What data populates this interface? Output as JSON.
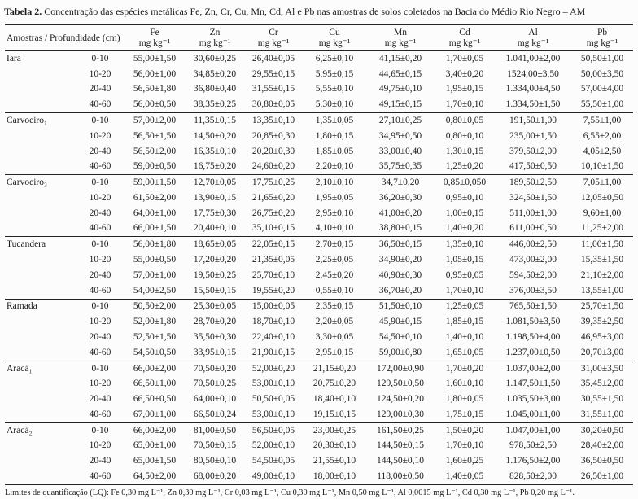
{
  "table": {
    "caption": {
      "label": "Tabela 2.",
      "text": "Concentração das espécies metálicas Fe, Zn, Cr, Cu, Mn, Cd, Al e Pb  nas amostras de solos coletados na Bacia do Médio Rio Negro – AM"
    },
    "header": {
      "row_header": "Amostras / Profundidade (cm)",
      "columns": [
        "Fe",
        "Zn",
        "Cr",
        "Cu",
        "Mn",
        "Cd",
        "Al",
        "Pb"
      ],
      "unit": "mg kg⁻¹"
    },
    "groups": [
      {
        "name": "Iara",
        "rows": [
          {
            "depth": "0-10",
            "values": [
              "55,00±1,50",
              "30,60±0,25",
              "26,40±0,05",
              "6,25±0,10",
              "41,15±0,20",
              "1,70±0,05",
              "1.041,00±2,00",
              "50,50±1,00"
            ]
          },
          {
            "depth": "10-20",
            "values": [
              "56,00±1,00",
              "34,85±0,20",
              "29,55±0,15",
              "5,95±0,15",
              "44,65±0,15",
              "3,40±0,20",
              "1524,00±3,50",
              "50,00±3,50"
            ]
          },
          {
            "depth": "20-40",
            "values": [
              "56,50±1,80",
              "36,80±0,40",
              "31,55±0,15",
              "5,55±0,10",
              "49,75±0,10",
              "1,95±0,15",
              "1.334,00±4,50",
              "57,00±4,00"
            ]
          },
          {
            "depth": "40-60",
            "values": [
              "56,00±0,50",
              "38,35±0,25",
              "30,80±0,05",
              "5,30±0,10",
              "49,15±0,15",
              "1,70±0,10",
              "1.334,50±1,50",
              "55,50±1,00"
            ]
          }
        ]
      },
      {
        "name": "Carvoeiro₁",
        "rows": [
          {
            "depth": "0-10",
            "values": [
              "57,00±2,00",
              "11,35±0,15",
              "13,35±0,10",
              "1,35±0,05",
              "27,10±0,25",
              "0,80±0,05",
              "191,50±1,00",
              "7,55±1,00"
            ]
          },
          {
            "depth": "10-20",
            "values": [
              "56,50±1,50",
              "14,50±0,20",
              "20,85±0,30",
              "1,80±0,15",
              "34,95±0,50",
              "0,80±0,10",
              "235,00±1,50",
              "6,55±2,00"
            ]
          },
          {
            "depth": "20-40",
            "values": [
              "56,50±2,00",
              "16,35±0,10",
              "20,20±0,30",
              "1,85±0,05",
              "33,00±0,40",
              "1,30±0,15",
              "379,50±2,00",
              "4,05±2,50"
            ]
          },
          {
            "depth": "40-60",
            "values": [
              "59,00±0,50",
              "16,75±0,20",
              "24,60±0,20",
              "2,20±0,10",
              "35,75±0,35",
              "1,25±0,20",
              "417,50±0,50",
              "10,10±1,50"
            ]
          }
        ]
      },
      {
        "name": "Carvoeiro₃",
        "rows": [
          {
            "depth": "0-10",
            "values": [
              "59,00±1,50",
              "12,70±0,05",
              "17,75±0,25",
              "2,10±0,10",
              "34,7±0,20",
              "0,85±0,050",
              "189,50±2,50",
              "7,05±1,00"
            ]
          },
          {
            "depth": "10-20",
            "values": [
              "61,50±2,00",
              "13,90±0,15",
              "21,65±0,20",
              "1,95±0,05",
              "36,20±0,30",
              "0,95±0,10",
              "324,50±1,50",
              "12,05±0,50"
            ]
          },
          {
            "depth": "20-40",
            "values": [
              "64,00±1,00",
              "17,75±0,30",
              "26,75±0,20",
              "2,95±0,10",
              "41,00±0,20",
              "1,00±0,15",
              "511,00±1,00",
              "9,60±1,00"
            ]
          },
          {
            "depth": "40-60",
            "values": [
              "66,00±1,50",
              "20,40±0,10",
              "35,10±0,15",
              "4,10±0,10",
              "38,80±0,15",
              "1,40±0,20",
              "611,00±0,50",
              "11,25±2,00"
            ]
          }
        ]
      },
      {
        "name": "Tucandera",
        "rows": [
          {
            "depth": "0-10",
            "values": [
              "56,00±1,80",
              "18,65±0,05",
              "22,05±0,15",
              "2,70±0,15",
              "36,50±0,15",
              "1,35±0,10",
              "446,00±2,50",
              "11,00±1,50"
            ]
          },
          {
            "depth": "10-20",
            "values": [
              "55,00±0,50",
              "17,20±0,20",
              "21,35±0,05",
              "2,25±0,05",
              "34,90±0,20",
              "1,05±0,15",
              "473,00±2,00",
              "15,35±1,50"
            ]
          },
          {
            "depth": "20-40",
            "values": [
              "57,00±1,00",
              "19,50±0,25",
              "25,70±0,10",
              "2,45±0,20",
              "40,90±0,30",
              "0,95±0,05",
              "594,50±2,00",
              "21,10±2,00"
            ]
          },
          {
            "depth": "40-60",
            "values": [
              "54,00±2,50",
              "15,50±0,15",
              "19,55±0,20",
              "0,55±0,10",
              "36,70±0,20",
              "1,70±0,10",
              "376,00±3,50",
              "13,55±1,00"
            ]
          }
        ]
      },
      {
        "name": "Ramada",
        "rows": [
          {
            "depth": "0-10",
            "values": [
              "50,50±2,00",
              "25,30±0,05",
              "15,00±0,05",
              "2,35±0,15",
              "51,50±0,10",
              "1,25±0,05",
              "765,50±1,50",
              "25,70±1,50"
            ]
          },
          {
            "depth": "10-20",
            "values": [
              "52,00±1,80",
              "28,70±0,20",
              "18,70±0,10",
              "2,20±0,05",
              "45,90±0,15",
              "1,85±0,15",
              "1.081,50±3,50",
              "39,35±2,50"
            ]
          },
          {
            "depth": "20-40",
            "values": [
              "52,50±1,50",
              "35,50±0,30",
              "22,40±0,10",
              "3,30±0,05",
              "54,50±0,10",
              "1,40±0,10",
              "1.198,50±4,00",
              "46,95±3,00"
            ]
          },
          {
            "depth": "40-60",
            "values": [
              "54,50±0,50",
              "33,95±0,15",
              "21,90±0,15",
              "2,95±0,15",
              "59,00±0,80",
              "1,65±0,05",
              "1.237,00±0,50",
              "20,70±3,00"
            ]
          }
        ]
      },
      {
        "name": "Aracá₁",
        "rows": [
          {
            "depth": "0-10",
            "values": [
              "66,00±2,00",
              "70,50±0,20",
              "52,00±0,20",
              "21,15±0,20",
              "172,00±0,90",
              "1,70±0,20",
              "1.037,00±2,00",
              "31,00±3,50"
            ]
          },
          {
            "depth": "10-20",
            "values": [
              "66,50±1,00",
              "70,50±0,25",
              "53,00±0,10",
              "20,75±0,20",
              "129,50±0,50",
              "1,60±0,10",
              "1.147,50±1,50",
              "35,45±2,00"
            ]
          },
          {
            "depth": "20-40",
            "values": [
              "66,50±0,50",
              "64,00±0,10",
              "50,50±0,05",
              "18,40±0,10",
              "124,50±0,20",
              "1,80±0,05",
              "1.035,50±3,00",
              "30,55±1,50"
            ]
          },
          {
            "depth": "40-60",
            "values": [
              "67,00±1,00",
              "66,50±0,24",
              "53,00±0,10",
              "19,15±0,15",
              "129,00±0,30",
              "1,75±0,15",
              "1.045,00±1,00",
              "31,55±1,00"
            ]
          }
        ]
      },
      {
        "name": "Aracá₂",
        "rows": [
          {
            "depth": "0-10",
            "values": [
              "66,00±2,00",
              "81,00±0,50",
              "56,50±0,05",
              "23,00±0,25",
              "161,50±0,25",
              "1,50±0,20",
              "1.047,00±1,00",
              "30,20±0,50"
            ]
          },
          {
            "depth": "10-20",
            "values": [
              "65,00±1,00",
              "70,50±0,15",
              "52,00±0,10",
              "20,30±0,10",
              "144,50±0,15",
              "1,70±0,10",
              "978,50±2,50",
              "28,40±2,00"
            ]
          },
          {
            "depth": "20-40",
            "values": [
              "65,00±1,50",
              "80,50±0,10",
              "54,50±0,05",
              "21,55±0,10",
              "144,50±0,10",
              "1,60±0,25",
              "1.176,50±2,00",
              "36,50±0,50"
            ]
          },
          {
            "depth": "40-60",
            "values": [
              "64,50±2,00",
              "68,00±0,20",
              "49,00±0,10",
              "18,00±0,10",
              "118,00±0,50",
              "1,40±0,05",
              "828,50±2,00",
              "26,50±1,00"
            ]
          }
        ]
      }
    ],
    "footnote": "Limites de quantificação (LQ): Fe 0,30 mg L⁻¹, Zn 0,30 mg L⁻¹, Cr 0,03 mg L⁻¹, Cu 0,30 mg L⁻¹, Mn 0,50 mg L⁻¹, Al 0,0015 mg L⁻¹, Cd 0,30 mg L⁻¹, Pb 0,20 mg L⁻¹."
  }
}
